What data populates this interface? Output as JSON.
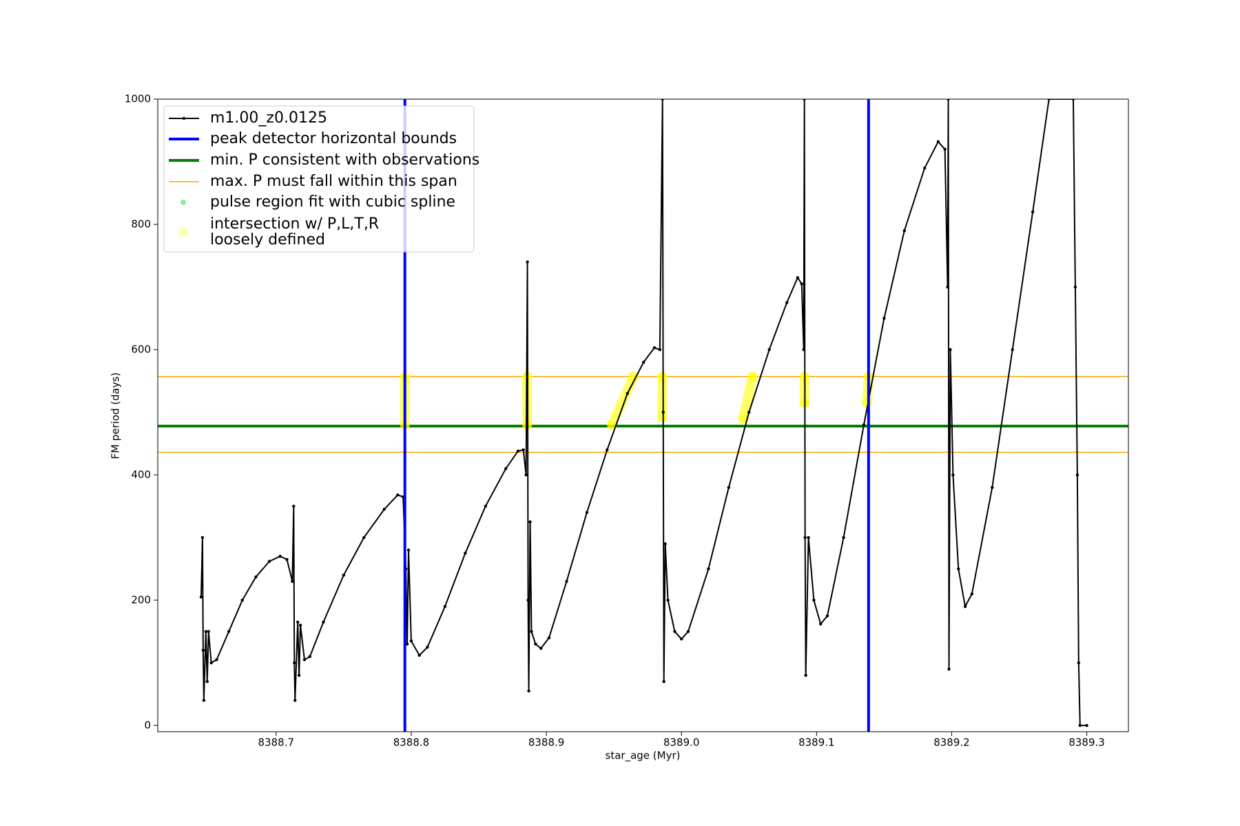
{
  "chart_data": {
    "type": "line",
    "x_label": "star_age (Myr)",
    "y_label": "FM period (days)",
    "xlim": [
      8388.6124,
      8389.3308
    ],
    "ylim": [
      -10,
      1000
    ],
    "xticks": [
      8388.7,
      8388.8,
      8388.9,
      {
        "value": 8389,
        "label": "8389.0"
      },
      8389.1,
      8389.2,
      8389.3
    ],
    "yticks": [
      0,
      200,
      400,
      600,
      800,
      1000
    ],
    "series": [
      {
        "name": "m1.00_z0.0125",
        "color": "#000000",
        "x": [
          8388.6445,
          8388.6455,
          8388.646,
          8388.6465,
          8388.648,
          8388.649,
          8388.65,
          8388.652,
          8388.656,
          8388.665,
          8388.675,
          8388.685,
          8388.695,
          8388.703,
          8388.708,
          8388.712,
          8388.713,
          8388.7135,
          8388.714,
          8388.716,
          8388.717,
          8388.718,
          8388.721,
          8388.725,
          8388.735,
          8388.75,
          8388.765,
          8388.78,
          8388.79,
          8388.794,
          8388.796,
          8388.797,
          8388.798,
          8388.8,
          8388.806,
          8388.812,
          8388.825,
          8388.84,
          8388.855,
          8388.87,
          8388.879,
          8388.883,
          8388.885,
          8388.886,
          8388.8865,
          8388.887,
          8388.888,
          8388.889,
          8388.892,
          8388.896,
          8388.902,
          8388.915,
          8388.93,
          8388.945,
          8388.96,
          8388.972,
          8388.98,
          8388.984,
          8388.986,
          8388.9865,
          8388.987,
          8388.988,
          8388.99,
          8388.995,
          8389.0,
          8389.005,
          8389.02,
          8389.035,
          8389.05,
          8389.065,
          8389.078,
          8389.086,
          8389.089,
          8389.0905,
          8389.091,
          8389.0915,
          8389.092,
          8389.094,
          8389.098,
          8389.103,
          8389.108,
          8389.12,
          8389.135,
          8389.15,
          8389.165,
          8389.18,
          8389.19,
          8389.195,
          8389.197,
          8389.1975,
          8389.198,
          8389.199,
          8389.201,
          8389.205,
          8389.21,
          8389.215,
          8389.23,
          8389.245,
          8389.26,
          8389.272,
          8389.29,
          8389.2915,
          8389.293,
          8389.294,
          8389.295,
          8389.3
        ],
        "values": [
          205,
          300,
          120,
          40,
          150,
          70,
          150,
          100,
          105,
          150,
          200,
          237,
          262,
          270,
          265,
          230,
          350,
          100,
          40,
          165,
          80,
          160,
          105,
          110,
          165,
          240,
          300,
          345,
          368,
          365,
          250,
          130,
          280,
          135,
          112,
          125,
          190,
          275,
          350,
          410,
          438,
          440,
          400,
          740,
          200,
          55,
          325,
          150,
          130,
          123,
          140,
          230,
          340,
          440,
          530,
          580,
          603,
          600,
          1000,
          500,
          70,
          290,
          200,
          150,
          138,
          150,
          250,
          380,
          500,
          600,
          675,
          715,
          705,
          600,
          1000,
          300,
          80,
          300,
          200,
          162,
          175,
          300,
          480,
          650,
          790,
          890,
          932,
          920,
          700,
          1000,
          90,
          600,
          400,
          250,
          190,
          210,
          380,
          600,
          820,
          1000,
          1000,
          700,
          400,
          100,
          0,
          0
        ]
      }
    ],
    "vlines": {
      "name": "peak detector horizontal bounds",
      "color": "#0000ff",
      "x": [
        8388.7953,
        8389.1385
      ]
    },
    "hline_min": {
      "name": "min. P consistent with observations",
      "color": "#008000",
      "y": 478
    },
    "hline_span": {
      "name": "max. P must fall within this span",
      "color": "#ffa500",
      "y": [
        436,
        557
      ]
    },
    "spline_points": {
      "name": "pulse region fit with cubic spline",
      "color": "#90ee90",
      "x": [],
      "values": []
    },
    "intersections": {
      "name": [
        "intersection w/ P,L,T,R",
        "loosely defined"
      ],
      "color": "#ffff00",
      "x": [
        8388.7953,
        8388.7953,
        null,
        8388.8858,
        8388.8858,
        null,
        8388.9485,
        8388.9645,
        null,
        8388.9858,
        8388.9858,
        null,
        8389.0456,
        8389.0527,
        null,
        8389.0911,
        8389.0911,
        null,
        8389.1373,
        8389.1385
      ],
      "values": [
        557,
        480,
        null,
        557,
        480,
        null,
        480,
        557,
        null,
        557,
        492,
        null,
        490,
        557,
        null,
        557,
        515,
        null,
        515,
        557
      ]
    }
  }
}
